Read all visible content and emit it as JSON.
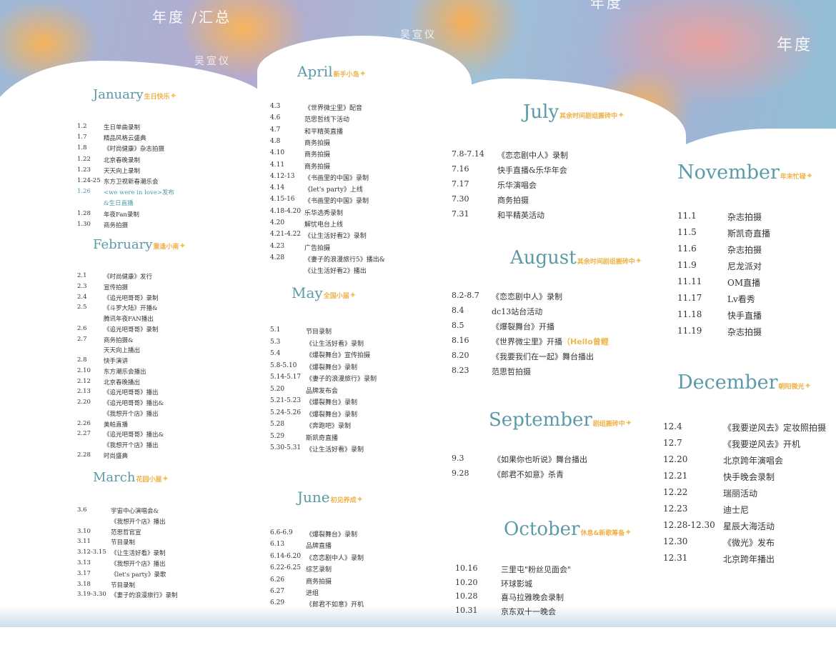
{
  "header": {
    "left_title": "年度 /汇总",
    "left_name": "吴宣仪",
    "mid_name": "吴宣仪",
    "mid_title": "年度",
    "right_title": "年度"
  },
  "colors": {
    "title": "#5b9aa8",
    "subtitle": "#efb24a",
    "highlight": "#4d9aaa"
  },
  "months": [
    {
      "name": "January",
      "subtitle": "生日快乐",
      "rows": [
        [
          "1.2",
          "生日单曲录制"
        ],
        [
          "1.7",
          "精品风格云盛典"
        ],
        [
          "1.8",
          "《时尚健康》杂志拍摄"
        ],
        [
          "1.22",
          "北京春晚录制"
        ],
        [
          "1.23",
          "天天向上录制"
        ],
        [
          "1.24-25",
          "东方卫视新春潮乐会"
        ],
        [
          "1.26",
          "<we were in love>发布"
        ],
        [
          "",
          "&生日直播"
        ],
        [
          "1.28",
          "年夜Fan录制"
        ],
        [
          "1.30",
          "商务拍摄"
        ]
      ]
    },
    {
      "name": "February",
      "subtitle": "重逢小南",
      "rows": [
        [
          "2.1",
          "《时尚健康》发行"
        ],
        [
          "2.3",
          "宣传拍摄"
        ],
        [
          "2.4",
          "《追光吧哥哥》录制"
        ],
        [
          "2.5",
          "《斗罗大陆》开播&"
        ],
        [
          "",
          "腾讯年夜FAN播出"
        ],
        [
          "2.6",
          "《追光吧哥哥》录制"
        ],
        [
          "2.7",
          "商务拍摄&"
        ],
        [
          "",
          "天天向上播出"
        ],
        [
          "2.8",
          "快手演讲"
        ],
        [
          "2.10",
          "东方潮乐会播出"
        ],
        [
          "2.12",
          "北京春晚播出"
        ],
        [
          "2.13",
          "《追光吧哥哥》播出"
        ],
        [
          "2.20",
          "《追光吧哥哥》播出&"
        ],
        [
          "",
          "《我想开个店》播出"
        ],
        [
          "2.26",
          "美帕直播"
        ],
        [
          "2.27",
          "《追光吧哥哥》播出&"
        ],
        [
          "",
          "《我想开个店》播出"
        ],
        [
          "2.28",
          "时尚盛典"
        ]
      ]
    },
    {
      "name": "March",
      "subtitle": "花园小屋",
      "rows": [
        [
          "3.6",
          "宇宙中心演唱会&"
        ],
        [
          "",
          "《我想开个店》播出"
        ],
        [
          "3.10",
          "范思哲官宣"
        ],
        [
          "3.11",
          "节目录制"
        ],
        [
          "3.12-3.15",
          "《让生活好看》录制"
        ],
        [
          "3.13",
          "《我想开个店》播出"
        ],
        [
          "3.17",
          "《let's party》录歌"
        ],
        [
          "3.18",
          "节目录制"
        ],
        [
          "3.19-3.30",
          "《妻子的浪漫旅行》录制"
        ]
      ]
    },
    {
      "name": "April",
      "subtitle": "新手小岛",
      "rows": [
        [
          "4.3",
          "《世界微尘里》配音"
        ],
        [
          "4.6",
          "范思哲线下活动"
        ],
        [
          "4.7",
          "和平精英直播"
        ],
        [
          "4.8",
          "商务拍摄"
        ],
        [
          "4.10",
          "商务拍摄"
        ],
        [
          "4.11",
          "商务拍摄"
        ],
        [
          "4.12-13",
          "《书画里的中国》录制"
        ],
        [
          "4.14",
          "《let's party》上线"
        ],
        [
          "4.15-16",
          "《书画里的中国》录制"
        ],
        [
          "4.18-4.20",
          "乐华选秀录制"
        ],
        [
          "4.20",
          "解忧电台上线"
        ],
        [
          "4.21-4.22",
          "《让生活好看2》录制"
        ],
        [
          "4.23",
          "广告拍摄"
        ],
        [
          "4.28",
          "《妻子的浪漫旅行5》播出&"
        ],
        [
          "",
          "《让生活好看2》播出"
        ]
      ]
    },
    {
      "name": "May",
      "subtitle": "全国小届",
      "rows": [
        [
          "5.1",
          "节目录制"
        ],
        [
          "5.3",
          "《让生活好看》录制"
        ],
        [
          "5.4",
          "《爆裂舞台》宣传拍摄"
        ],
        [
          "5.8-5.10",
          "《爆裂舞台》录制"
        ],
        [
          "5.14-5.17",
          "《妻子的浪漫旅行》录制"
        ],
        [
          "5.20",
          "品牌发布会"
        ],
        [
          "5.21-5.23",
          "《爆裂舞台》录制"
        ],
        [
          "5.24-5.26",
          "《爆裂舞台》录制"
        ],
        [
          "5.28",
          "《奔跑吧》录制"
        ],
        [
          "5.29",
          "斯凯奇直播"
        ],
        [
          "5.30-5.31",
          "《让生活好看》录制"
        ]
      ]
    },
    {
      "name": "June",
      "subtitle": "初见养成",
      "rows": [
        [
          "6.6-6.9",
          "《爆裂舞台》录制"
        ],
        [
          "6.13",
          "品牌直播"
        ],
        [
          "6.14-6.20",
          "《恋恋剧中人》录制"
        ],
        [
          "6.22-6.25",
          "综艺录制"
        ],
        [
          "6.26",
          "商务拍摄"
        ],
        [
          "6.27",
          "进组"
        ],
        [
          "6.29",
          "《郎君不如意》开机"
        ]
      ]
    },
    {
      "name": "July",
      "subtitle": "其余时间剧组搬砖中",
      "rows": [
        [
          "7.8-7.14",
          "《恋恋剧中人》录制"
        ],
        [
          "7.16",
          "快手直播&乐华年会"
        ],
        [
          "7.17",
          "乐华演唱会"
        ],
        [
          "7.30",
          "商务拍摄"
        ],
        [
          "7.31",
          "和平精英活动"
        ]
      ]
    },
    {
      "name": "August",
      "subtitle": "其余时间剧组搬砖中",
      "rows": [
        [
          "8.2-8.7",
          "《恋恋剧中人》录制"
        ],
        [
          "8.4",
          "dc13站台活动"
        ],
        [
          "8.5",
          "《爆裂舞台》开播"
        ],
        [
          "8.16",
          "《世界微尘里》开播"
        ],
        [
          "8.20",
          "《我要我们在一起》舞台播出"
        ],
        [
          "8.23",
          "范思哲拍摄"
        ]
      ],
      "note": "（Hello曾鲤"
    },
    {
      "name": "September",
      "subtitle": "剧组搬砖中",
      "rows": [
        [
          "9.3",
          "《如果你也听说》舞台播出"
        ],
        [
          "9.28",
          "《郎君不如意》杀青"
        ]
      ]
    },
    {
      "name": "October",
      "subtitle": "休息&新歌筹备",
      "rows": [
        [
          "10.16",
          "三里屯\"粉丝见面会\""
        ],
        [
          "10.20",
          "环球影城"
        ],
        [
          "10.28",
          "喜马拉雅晚会录制"
        ],
        [
          "10.31",
          "京东双十一晚会"
        ]
      ]
    },
    {
      "name": "November",
      "subtitle": "年末忙碌",
      "rows": [
        [
          "11.1",
          "杂志拍摄"
        ],
        [
          "11.5",
          "斯凯奇直播"
        ],
        [
          "11.6",
          "杂志拍摄"
        ],
        [
          "11.9",
          "尼龙派对"
        ],
        [
          "11.11",
          "OM直播"
        ],
        [
          "11.17",
          "Lv看秀"
        ],
        [
          "11.18",
          "快手直播"
        ],
        [
          "11.19",
          "杂志拍摄"
        ]
      ]
    },
    {
      "name": "December",
      "subtitle": "朝阳微光",
      "rows": [
        [
          "12.4",
          "《我要逆风去》定妆照拍摄"
        ],
        [
          "12.7",
          "《我要逆风去》开机"
        ],
        [
          "12.20",
          "北京跨年演唱会"
        ],
        [
          "12.21",
          "快手晚会录制"
        ],
        [
          "12.22",
          "瑞丽活动"
        ],
        [
          "12.23",
          "迪士尼"
        ],
        [
          "12.28-12.30",
          "星辰大海活动"
        ],
        [
          "12.30",
          "《微光》发布"
        ],
        [
          "12.31",
          "北京跨年播出"
        ]
      ]
    }
  ]
}
